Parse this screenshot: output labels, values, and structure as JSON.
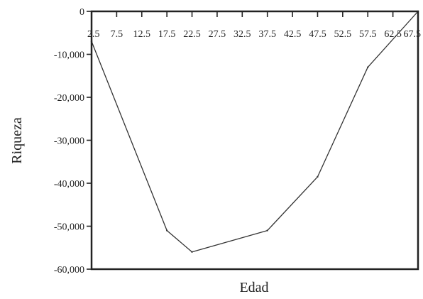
{
  "chart_data": {
    "type": "line",
    "xlabel": "Edad",
    "ylabel": "Riqueza",
    "x_ticks": [
      "2.5",
      "7.5",
      "12.5",
      "17.5",
      "22.5",
      "27.5",
      "32.5",
      "37.5",
      "42.5",
      "47.5",
      "52.5",
      "57.5",
      "62.5",
      "67.5"
    ],
    "y_ticks": [
      "0",
      "-10,000",
      "-20,000",
      "-30,000",
      "-40,000",
      "-50,000",
      "-60,000"
    ],
    "xlim": [
      2.5,
      67.5
    ],
    "ylim": [
      -60000,
      0
    ],
    "x": [
      2.5,
      17.5,
      22.5,
      37.5,
      47.5,
      57.5,
      67.5
    ],
    "y": [
      -7000,
      -51000,
      -56000,
      -51000,
      -38500,
      -13000,
      0
    ],
    "colors": {
      "line": "#333333",
      "axis": "#222222"
    }
  }
}
